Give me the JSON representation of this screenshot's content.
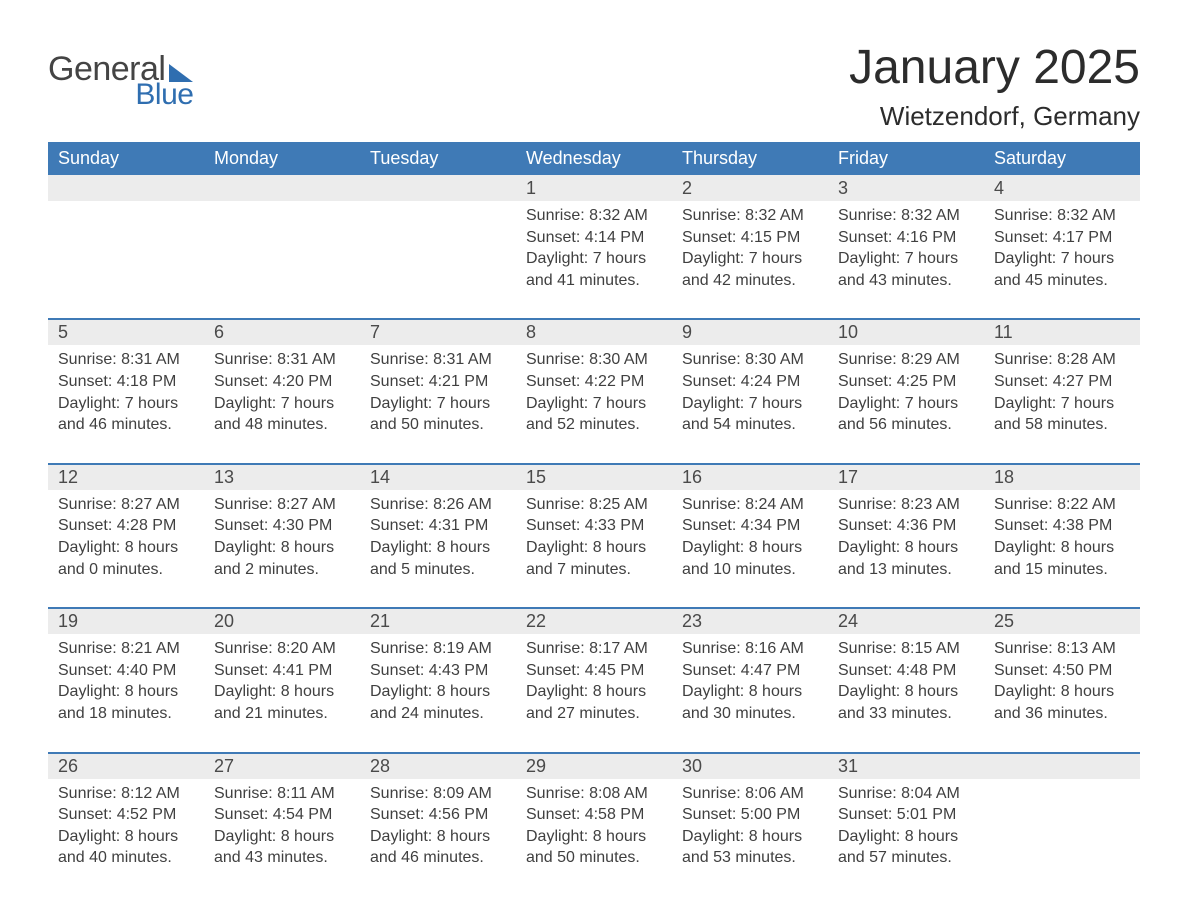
{
  "logo": {
    "general": "General",
    "blue": "Blue"
  },
  "title": "January 2025",
  "location": "Wietzendorf, Germany",
  "colors": {
    "header_bg": "#3f7ab6",
    "header_text": "#ffffff",
    "daynum_bg": "#ececec",
    "daynum_text": "#4a4a4a",
    "body_text": "#404040",
    "rule": "#3f7ab6",
    "logo_gray": "#444444",
    "logo_blue": "#2f6eb0",
    "page_bg": "#ffffff"
  },
  "typography": {
    "title_fontsize": 48,
    "location_fontsize": 26,
    "dayhead_fontsize": 18,
    "daynum_fontsize": 18,
    "cell_fontsize": 16,
    "logo_general_fontsize": 34,
    "logo_blue_fontsize": 30,
    "font_family": "Arial"
  },
  "day_names": [
    "Sunday",
    "Monday",
    "Tuesday",
    "Wednesday",
    "Thursday",
    "Friday",
    "Saturday"
  ],
  "weeks": [
    [
      null,
      null,
      null,
      {
        "n": "1",
        "sunrise": "Sunrise: 8:32 AM",
        "sunset": "Sunset: 4:14 PM",
        "d1": "Daylight: 7 hours",
        "d2": "and 41 minutes."
      },
      {
        "n": "2",
        "sunrise": "Sunrise: 8:32 AM",
        "sunset": "Sunset: 4:15 PM",
        "d1": "Daylight: 7 hours",
        "d2": "and 42 minutes."
      },
      {
        "n": "3",
        "sunrise": "Sunrise: 8:32 AM",
        "sunset": "Sunset: 4:16 PM",
        "d1": "Daylight: 7 hours",
        "d2": "and 43 minutes."
      },
      {
        "n": "4",
        "sunrise": "Sunrise: 8:32 AM",
        "sunset": "Sunset: 4:17 PM",
        "d1": "Daylight: 7 hours",
        "d2": "and 45 minutes."
      }
    ],
    [
      {
        "n": "5",
        "sunrise": "Sunrise: 8:31 AM",
        "sunset": "Sunset: 4:18 PM",
        "d1": "Daylight: 7 hours",
        "d2": "and 46 minutes."
      },
      {
        "n": "6",
        "sunrise": "Sunrise: 8:31 AM",
        "sunset": "Sunset: 4:20 PM",
        "d1": "Daylight: 7 hours",
        "d2": "and 48 minutes."
      },
      {
        "n": "7",
        "sunrise": "Sunrise: 8:31 AM",
        "sunset": "Sunset: 4:21 PM",
        "d1": "Daylight: 7 hours",
        "d2": "and 50 minutes."
      },
      {
        "n": "8",
        "sunrise": "Sunrise: 8:30 AM",
        "sunset": "Sunset: 4:22 PM",
        "d1": "Daylight: 7 hours",
        "d2": "and 52 minutes."
      },
      {
        "n": "9",
        "sunrise": "Sunrise: 8:30 AM",
        "sunset": "Sunset: 4:24 PM",
        "d1": "Daylight: 7 hours",
        "d2": "and 54 minutes."
      },
      {
        "n": "10",
        "sunrise": "Sunrise: 8:29 AM",
        "sunset": "Sunset: 4:25 PM",
        "d1": "Daylight: 7 hours",
        "d2": "and 56 minutes."
      },
      {
        "n": "11",
        "sunrise": "Sunrise: 8:28 AM",
        "sunset": "Sunset: 4:27 PM",
        "d1": "Daylight: 7 hours",
        "d2": "and 58 minutes."
      }
    ],
    [
      {
        "n": "12",
        "sunrise": "Sunrise: 8:27 AM",
        "sunset": "Sunset: 4:28 PM",
        "d1": "Daylight: 8 hours",
        "d2": "and 0 minutes."
      },
      {
        "n": "13",
        "sunrise": "Sunrise: 8:27 AM",
        "sunset": "Sunset: 4:30 PM",
        "d1": "Daylight: 8 hours",
        "d2": "and 2 minutes."
      },
      {
        "n": "14",
        "sunrise": "Sunrise: 8:26 AM",
        "sunset": "Sunset: 4:31 PM",
        "d1": "Daylight: 8 hours",
        "d2": "and 5 minutes."
      },
      {
        "n": "15",
        "sunrise": "Sunrise: 8:25 AM",
        "sunset": "Sunset: 4:33 PM",
        "d1": "Daylight: 8 hours",
        "d2": "and 7 minutes."
      },
      {
        "n": "16",
        "sunrise": "Sunrise: 8:24 AM",
        "sunset": "Sunset: 4:34 PM",
        "d1": "Daylight: 8 hours",
        "d2": "and 10 minutes."
      },
      {
        "n": "17",
        "sunrise": "Sunrise: 8:23 AM",
        "sunset": "Sunset: 4:36 PM",
        "d1": "Daylight: 8 hours",
        "d2": "and 13 minutes."
      },
      {
        "n": "18",
        "sunrise": "Sunrise: 8:22 AM",
        "sunset": "Sunset: 4:38 PM",
        "d1": "Daylight: 8 hours",
        "d2": "and 15 minutes."
      }
    ],
    [
      {
        "n": "19",
        "sunrise": "Sunrise: 8:21 AM",
        "sunset": "Sunset: 4:40 PM",
        "d1": "Daylight: 8 hours",
        "d2": "and 18 minutes."
      },
      {
        "n": "20",
        "sunrise": "Sunrise: 8:20 AM",
        "sunset": "Sunset: 4:41 PM",
        "d1": "Daylight: 8 hours",
        "d2": "and 21 minutes."
      },
      {
        "n": "21",
        "sunrise": "Sunrise: 8:19 AM",
        "sunset": "Sunset: 4:43 PM",
        "d1": "Daylight: 8 hours",
        "d2": "and 24 minutes."
      },
      {
        "n": "22",
        "sunrise": "Sunrise: 8:17 AM",
        "sunset": "Sunset: 4:45 PM",
        "d1": "Daylight: 8 hours",
        "d2": "and 27 minutes."
      },
      {
        "n": "23",
        "sunrise": "Sunrise: 8:16 AM",
        "sunset": "Sunset: 4:47 PM",
        "d1": "Daylight: 8 hours",
        "d2": "and 30 minutes."
      },
      {
        "n": "24",
        "sunrise": "Sunrise: 8:15 AM",
        "sunset": "Sunset: 4:48 PM",
        "d1": "Daylight: 8 hours",
        "d2": "and 33 minutes."
      },
      {
        "n": "25",
        "sunrise": "Sunrise: 8:13 AM",
        "sunset": "Sunset: 4:50 PM",
        "d1": "Daylight: 8 hours",
        "d2": "and 36 minutes."
      }
    ],
    [
      {
        "n": "26",
        "sunrise": "Sunrise: 8:12 AM",
        "sunset": "Sunset: 4:52 PM",
        "d1": "Daylight: 8 hours",
        "d2": "and 40 minutes."
      },
      {
        "n": "27",
        "sunrise": "Sunrise: 8:11 AM",
        "sunset": "Sunset: 4:54 PM",
        "d1": "Daylight: 8 hours",
        "d2": "and 43 minutes."
      },
      {
        "n": "28",
        "sunrise": "Sunrise: 8:09 AM",
        "sunset": "Sunset: 4:56 PM",
        "d1": "Daylight: 8 hours",
        "d2": "and 46 minutes."
      },
      {
        "n": "29",
        "sunrise": "Sunrise: 8:08 AM",
        "sunset": "Sunset: 4:58 PM",
        "d1": "Daylight: 8 hours",
        "d2": "and 50 minutes."
      },
      {
        "n": "30",
        "sunrise": "Sunrise: 8:06 AM",
        "sunset": "Sunset: 5:00 PM",
        "d1": "Daylight: 8 hours",
        "d2": "and 53 minutes."
      },
      {
        "n": "31",
        "sunrise": "Sunrise: 8:04 AM",
        "sunset": "Sunset: 5:01 PM",
        "d1": "Daylight: 8 hours",
        "d2": "and 57 minutes."
      },
      null
    ]
  ]
}
